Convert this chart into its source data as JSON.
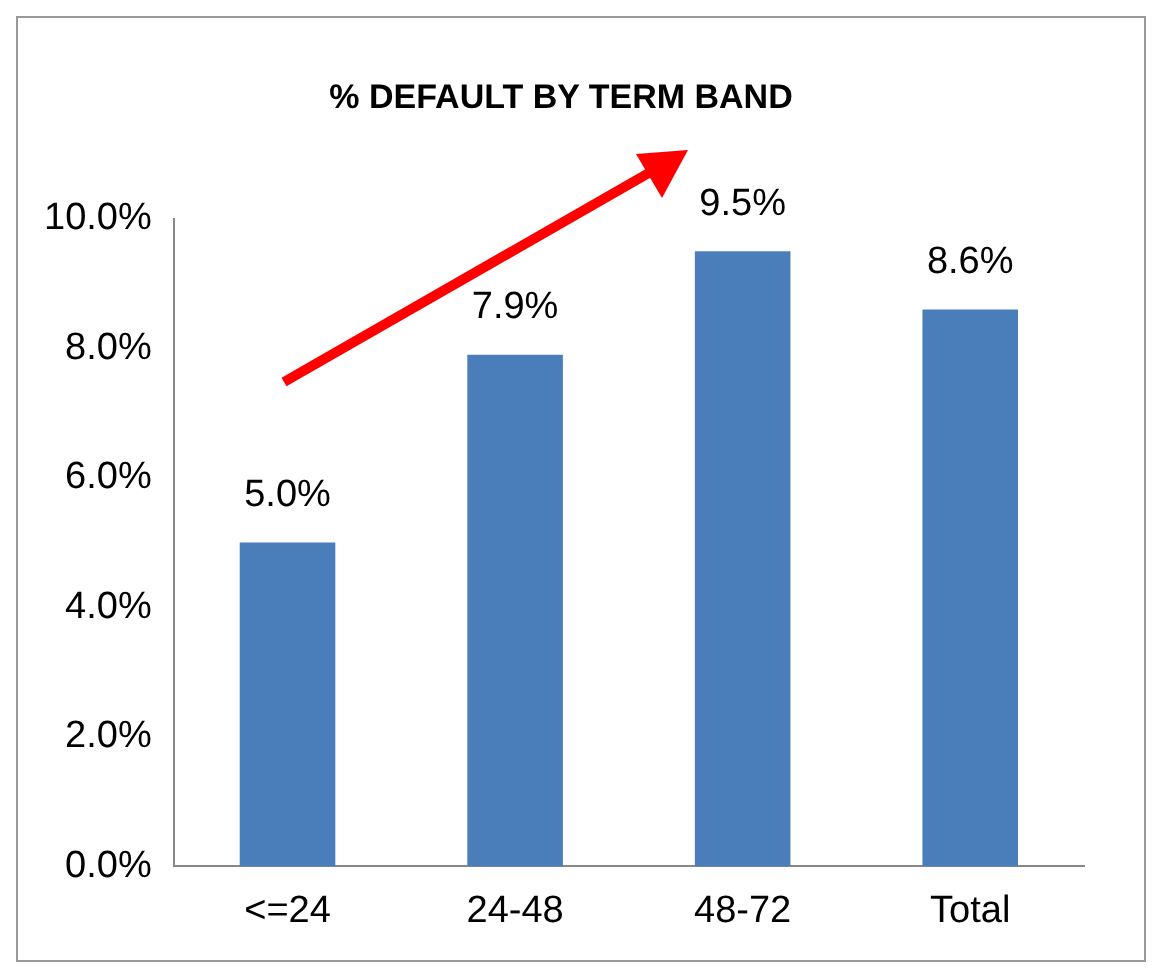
{
  "chart_data": {
    "type": "bar",
    "title": "% DEFAULT BY TERM BAND",
    "categories": [
      "<=24",
      "24-48",
      "48-72",
      "Total"
    ],
    "values": [
      5.0,
      7.9,
      9.5,
      8.6
    ],
    "value_labels": [
      "5.0%",
      "7.9%",
      "9.5%",
      "8.6%"
    ],
    "color": "#4a7ebb",
    "ylim": [
      0,
      10
    ],
    "yticks": [
      {
        "value": 0,
        "label": "0.0%"
      },
      {
        "value": 2,
        "label": "2.0%"
      },
      {
        "value": 4,
        "label": "4.0%"
      },
      {
        "value": 6,
        "label": "6.0%"
      },
      {
        "value": 8,
        "label": "8.0%"
      },
      {
        "value": 10,
        "label": "10.0%"
      }
    ],
    "grid": false,
    "legend": false
  }
}
